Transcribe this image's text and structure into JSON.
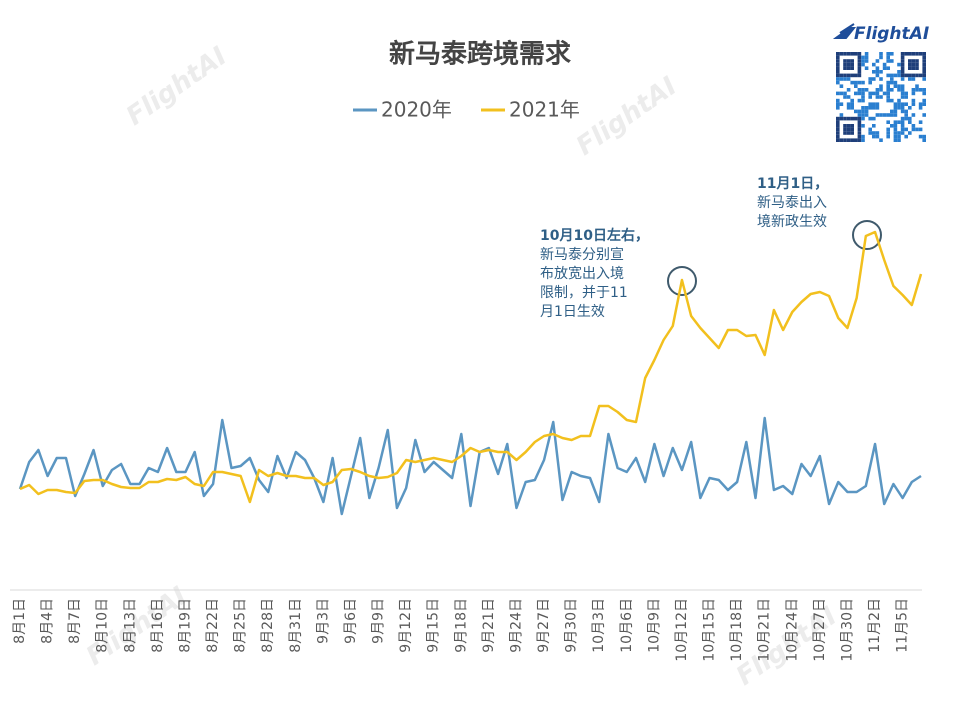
{
  "chart_data": {
    "type": "line",
    "title": "新马泰跨境需求",
    "categories": [
      "8月1日",
      null,
      null,
      "8月4日",
      null,
      null,
      "8月7日",
      null,
      null,
      "8月10日",
      null,
      null,
      "8月13日",
      null,
      null,
      "8月16日",
      null,
      null,
      "8月19日",
      null,
      null,
      "8月22日",
      null,
      null,
      "8月25日",
      null,
      null,
      "8月28日",
      null,
      null,
      "8月31日",
      null,
      null,
      "9月3日",
      null,
      null,
      "9月6日",
      null,
      null,
      "9月9日",
      null,
      null,
      "9月12日",
      null,
      null,
      "9月15日",
      null,
      null,
      "9月18日",
      null,
      null,
      "9月21日",
      null,
      null,
      "9月24日",
      null,
      null,
      "9月27日",
      null,
      null,
      "9月30日",
      null,
      null,
      "10月3日",
      null,
      null,
      "10月6日",
      null,
      null,
      "10月9日",
      null,
      null,
      "10月12日",
      null,
      null,
      "10月15日",
      null,
      null,
      "10月18日",
      null,
      null,
      "10月21日",
      null,
      null,
      "10月24日",
      null,
      null,
      "10月27日",
      null,
      null,
      "10月30日",
      null,
      null,
      "11月2日",
      null,
      null,
      "11月5日",
      null,
      null
    ],
    "series": [
      {
        "name": "2020年",
        "color": "#5b96c2",
        "values": [
          101,
          128,
          140,
          114,
          132,
          132,
          94,
          116,
          140,
          104,
          120,
          126,
          106,
          106,
          122,
          118,
          142,
          118,
          118,
          138,
          94,
          106,
          170,
          122,
          124,
          132,
          110,
          98,
          134,
          112,
          138,
          130,
          112,
          88,
          132,
          76,
          114,
          152,
          92,
          122,
          160,
          82,
          102,
          150,
          118,
          128,
          120,
          112,
          156,
          84,
          138,
          142,
          116,
          146,
          82,
          108,
          110,
          130,
          168,
          90,
          118,
          114,
          112,
          88,
          156,
          122,
          118,
          132,
          108,
          146,
          114,
          142,
          120,
          148,
          92,
          112,
          110,
          100,
          108,
          148,
          92,
          172,
          100,
          104,
          96,
          126,
          114,
          134,
          86,
          108,
          98,
          98,
          104,
          146,
          86,
          106,
          92,
          108,
          114
        ]
      },
      {
        "name": "2021年",
        "color": "#f2c01e",
        "values": [
          101,
          105,
          96,
          100,
          100,
          98,
          97,
          109,
          110,
          110,
          106,
          103,
          102,
          102,
          108,
          108,
          111,
          110,
          113,
          106,
          104,
          118,
          118,
          116,
          114,
          88,
          120,
          114,
          117,
          114,
          114,
          112,
          112,
          105,
          108,
          120,
          121,
          118,
          114,
          112,
          113,
          117,
          130,
          128,
          130,
          132,
          130,
          128,
          134,
          142,
          138,
          140,
          138,
          138,
          130,
          138,
          148,
          154,
          156,
          152,
          150,
          154,
          154,
          184,
          184,
          178,
          170,
          168,
          212,
          230,
          250,
          264,
          310,
          274,
          262,
          252,
          242,
          260,
          260,
          254,
          255,
          235,
          280,
          260,
          278,
          288,
          296,
          298,
          294,
          272,
          262,
          292,
          354,
          358,
          330,
          304,
          295,
          285,
          316
        ]
      }
    ],
    "annotations": [
      {
        "lines": [
          "10月10日左右，",
          "新马泰分别宣",
          "布放宽出入境",
          "限制，并于11",
          "月1日生效"
        ]
      },
      {
        "lines": [
          "11月1日，",
          "新马泰出入",
          "境新政生效"
        ]
      }
    ],
    "logo": "FlightAI",
    "watermark": "FlightAI"
  }
}
